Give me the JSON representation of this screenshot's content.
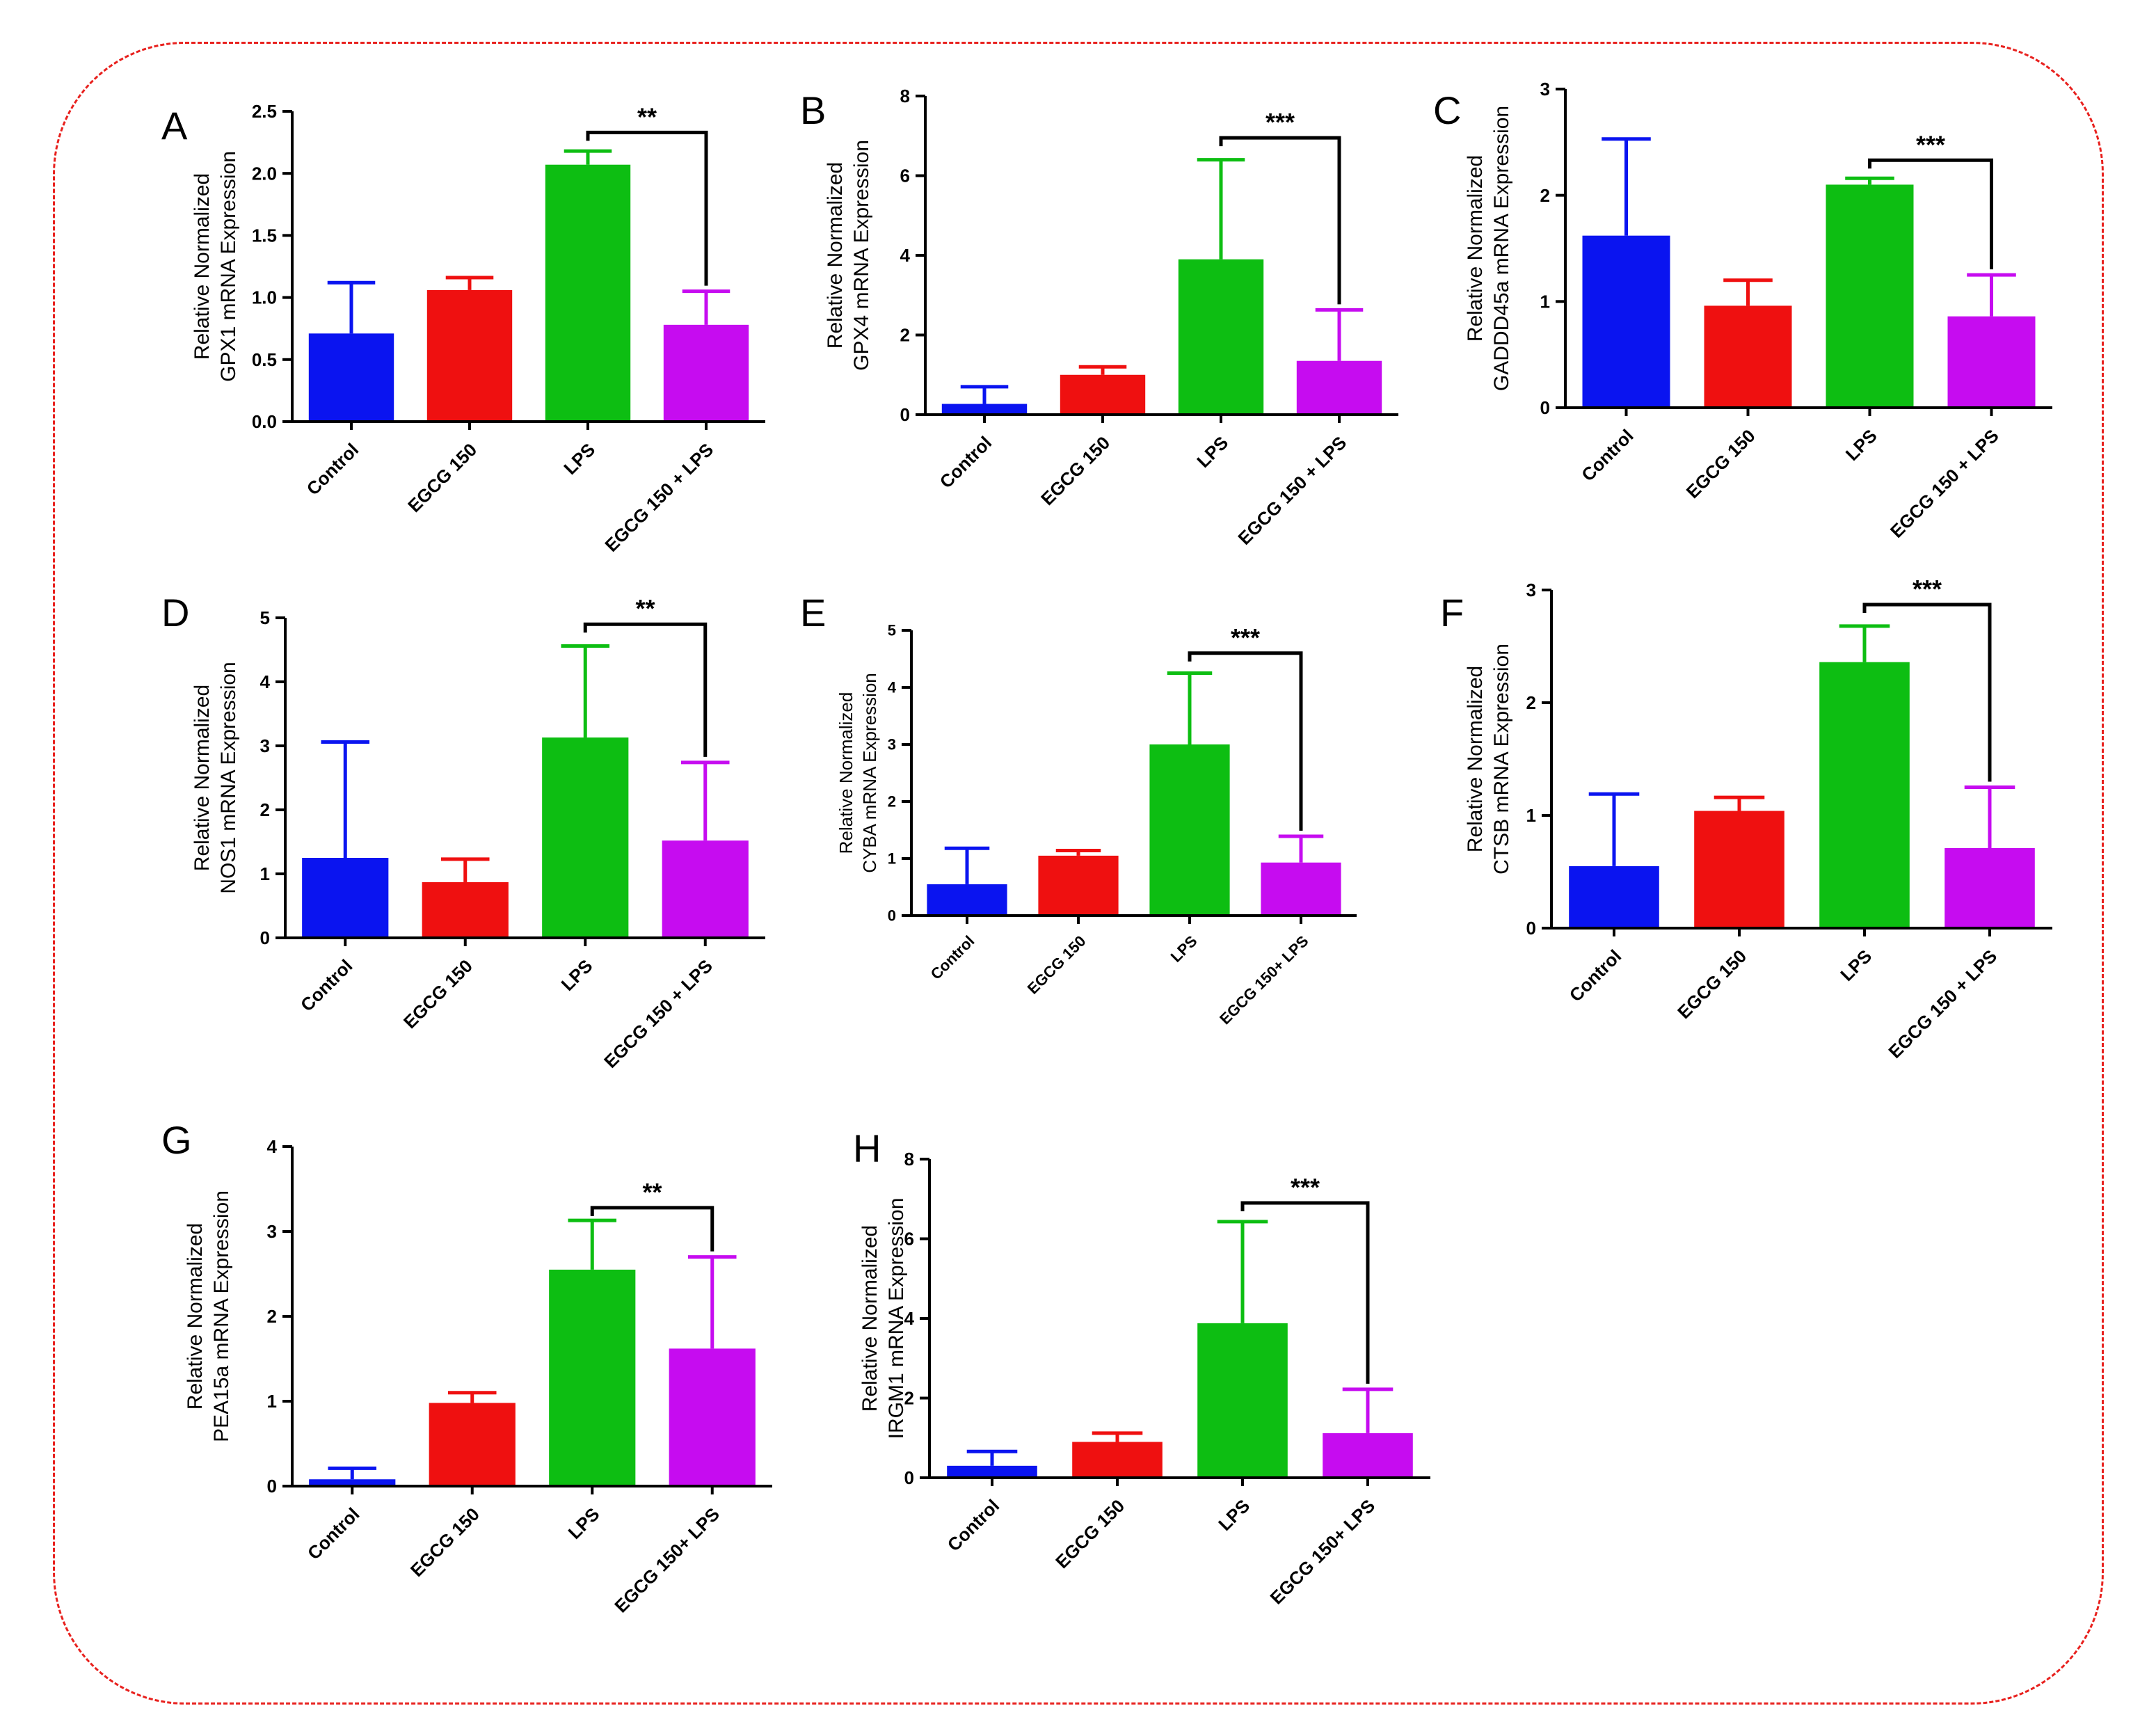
{
  "figure": {
    "border_color": "#e8211e",
    "bar_colors": [
      "#0a14f0",
      "#ef1010",
      "#0dbe12",
      "#c60cf0"
    ]
  },
  "chart_data": [
    {
      "type": "bar",
      "panel": "A",
      "title": "",
      "ylabel": [
        "Relative Normalized",
        "GPX1 mRNA Expression"
      ],
      "xlabel": "",
      "ylim": [
        0,
        2.5
      ],
      "yticks": [
        0,
        0.5,
        1.0,
        1.5,
        2.0,
        2.5
      ],
      "ytick_labels": [
        "0.0",
        "0.5",
        "1.0",
        "1.5",
        "2.0",
        "2.5"
      ],
      "categories": [
        "Control",
        "EGCG 150",
        "LPS",
        "EGCG 150 + LPS"
      ],
      "values": [
        0.71,
        1.06,
        2.07,
        0.78
      ],
      "errors": [
        0.41,
        0.1,
        0.11,
        0.27
      ],
      "significance": {
        "from": 2,
        "to": 3,
        "label": "**",
        "y": 2.33
      }
    },
    {
      "type": "bar",
      "panel": "B",
      "title": "",
      "ylabel": [
        "Relative Normalized",
        "GPX4 mRNA Expression"
      ],
      "xlabel": "",
      "ylim": [
        0,
        8
      ],
      "yticks": [
        0,
        2,
        4,
        6,
        8
      ],
      "ytick_labels": [
        "0",
        "2",
        "4",
        "6",
        "8"
      ],
      "categories": [
        "Control",
        "EGCG 150",
        "LPS",
        "EGCG 150 + LPS"
      ],
      "values": [
        0.27,
        1.0,
        3.9,
        1.35
      ],
      "errors": [
        0.43,
        0.2,
        2.5,
        1.28
      ],
      "significance": {
        "from": 2,
        "to": 3,
        "label": "***",
        "y": 6.95
      }
    },
    {
      "type": "bar",
      "panel": "C",
      "title": "",
      "ylabel": [
        "Relative Normalized",
        "GADDD45a mRNA Expression"
      ],
      "xlabel": "",
      "ylim": [
        0,
        3
      ],
      "yticks": [
        0,
        1,
        2,
        3
      ],
      "ytick_labels": [
        "0",
        "1",
        "2",
        "3"
      ],
      "categories": [
        "Control",
        "EGCG 150",
        "LPS",
        "EGCG 150 + LPS"
      ],
      "values": [
        1.62,
        0.96,
        2.1,
        0.86
      ],
      "errors": [
        0.91,
        0.24,
        0.06,
        0.39
      ],
      "significance": {
        "from": 2,
        "to": 3,
        "label": "***",
        "y": 2.33
      }
    },
    {
      "type": "bar",
      "panel": "D",
      "title": "",
      "ylabel": [
        "Relative Normalized",
        "NOS1 mRNA Expression"
      ],
      "xlabel": "",
      "ylim": [
        0,
        5
      ],
      "yticks": [
        0,
        1,
        2,
        3,
        4,
        5
      ],
      "ytick_labels": [
        "0",
        "1",
        "2",
        "3",
        "4",
        "5"
      ],
      "categories": [
        "Control",
        "EGCG 150",
        "LPS",
        "EGCG 150 + LPS"
      ],
      "values": [
        1.25,
        0.87,
        3.13,
        1.52
      ],
      "errors": [
        1.81,
        0.36,
        1.43,
        1.22
      ],
      "significance": {
        "from": 2,
        "to": 3,
        "label": "**",
        "y": 4.9
      }
    },
    {
      "type": "bar",
      "panel": "E",
      "title": "",
      "ylabel": [
        "Relative Normalized",
        "CYBA mRNA Expression"
      ],
      "xlabel": "",
      "ylim": [
        0,
        5
      ],
      "yticks": [
        0,
        1,
        2,
        3,
        4,
        5
      ],
      "ytick_labels": [
        "0",
        "1",
        "2",
        "3",
        "4",
        "5"
      ],
      "categories": [
        "Control",
        "EGCG 150",
        "LPS",
        "EGCG 150+ LPS"
      ],
      "values": [
        0.55,
        1.05,
        3.0,
        0.93
      ],
      "errors": [
        0.63,
        0.09,
        1.25,
        0.46
      ],
      "significance": {
        "from": 2,
        "to": 3,
        "label": "***",
        "y": 4.6
      }
    },
    {
      "type": "bar",
      "panel": "F",
      "title": "",
      "ylabel": [
        "Relative Normalized",
        "CTSB mRNA Expression"
      ],
      "xlabel": "",
      "ylim": [
        0,
        3
      ],
      "yticks": [
        0,
        1,
        2,
        3
      ],
      "ytick_labels": [
        "0",
        "1",
        "2",
        "3"
      ],
      "categories": [
        "Control",
        "EGCG 150",
        "LPS",
        "EGCG 150 + LPS"
      ],
      "values": [
        0.55,
        1.04,
        2.36,
        0.71
      ],
      "errors": [
        0.64,
        0.12,
        0.32,
        0.54
      ],
      "significance": {
        "from": 2,
        "to": 3,
        "label": "***",
        "y": 2.87
      }
    },
    {
      "type": "bar",
      "panel": "G",
      "title": "",
      "ylabel": [
        "Relative Normalized",
        "PEA15a mRNA Expression"
      ],
      "xlabel": "",
      "ylim": [
        0,
        4
      ],
      "yticks": [
        0,
        1,
        2,
        3,
        4
      ],
      "ytick_labels": [
        "0",
        "1",
        "2",
        "3",
        "4"
      ],
      "categories": [
        "Control",
        "EGCG 150",
        "LPS",
        "EGCG 150+ LPS"
      ],
      "values": [
        0.08,
        0.98,
        2.55,
        1.62
      ],
      "errors": [
        0.13,
        0.12,
        0.58,
        1.08
      ],
      "significance": {
        "from": 2,
        "to": 3,
        "label": "**",
        "y": 3.28
      }
    },
    {
      "type": "bar",
      "panel": "H",
      "title": "",
      "ylabel": [
        "Relative Normalized",
        "IRGM1 mRNA Expression"
      ],
      "xlabel": "",
      "ylim": [
        0,
        8
      ],
      "yticks": [
        0,
        2,
        4,
        6,
        8
      ],
      "ytick_labels": [
        "0",
        "2",
        "4",
        "6",
        "8"
      ],
      "categories": [
        "Control",
        "EGCG 150",
        "LPS",
        "EGCG 150+ LPS"
      ],
      "values": [
        0.3,
        0.9,
        3.88,
        1.12
      ],
      "errors": [
        0.36,
        0.22,
        2.55,
        1.1
      ],
      "significance": {
        "from": 2,
        "to": 3,
        "label": "***",
        "y": 6.9
      }
    }
  ]
}
